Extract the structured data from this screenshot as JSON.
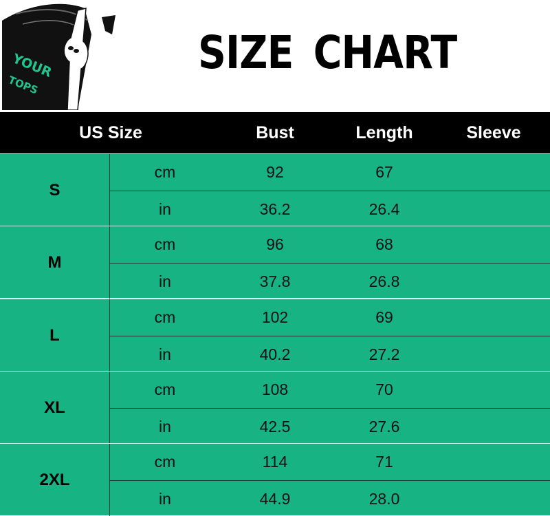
{
  "logo": {
    "text_line1": "YOUR",
    "text_line2": "TOPS",
    "accent": "#1fc48e"
  },
  "title": "SIZE CHART",
  "header": {
    "size": "US Size",
    "bust": "Bust",
    "length": "Length",
    "sleeve": "Sleeve"
  },
  "colors": {
    "row_bg": "#17b382",
    "header_bg": "#000000"
  },
  "rows": [
    {
      "size": "S",
      "cm": {
        "unit": "cm",
        "bust": "92",
        "length": "67",
        "sleeve": ""
      },
      "in": {
        "unit": "in",
        "bust": "36.2",
        "length": "26.4",
        "sleeve": ""
      }
    },
    {
      "size": "M",
      "cm": {
        "unit": "cm",
        "bust": "96",
        "length": "68",
        "sleeve": ""
      },
      "in": {
        "unit": "in",
        "bust": "37.8",
        "length": "26.8",
        "sleeve": ""
      }
    },
    {
      "size": "L",
      "cm": {
        "unit": "cm",
        "bust": "102",
        "length": "69",
        "sleeve": ""
      },
      "in": {
        "unit": "in",
        "bust": "40.2",
        "length": "27.2",
        "sleeve": ""
      }
    },
    {
      "size": "XL",
      "cm": {
        "unit": "cm",
        "bust": "108",
        "length": "70",
        "sleeve": ""
      },
      "in": {
        "unit": "in",
        "bust": "42.5",
        "length": "27.6",
        "sleeve": ""
      }
    },
    {
      "size": "2XL",
      "cm": {
        "unit": "cm",
        "bust": "114",
        "length": "71",
        "sleeve": ""
      },
      "in": {
        "unit": "in",
        "bust": "44.9",
        "length": "28.0",
        "sleeve": ""
      }
    }
  ]
}
